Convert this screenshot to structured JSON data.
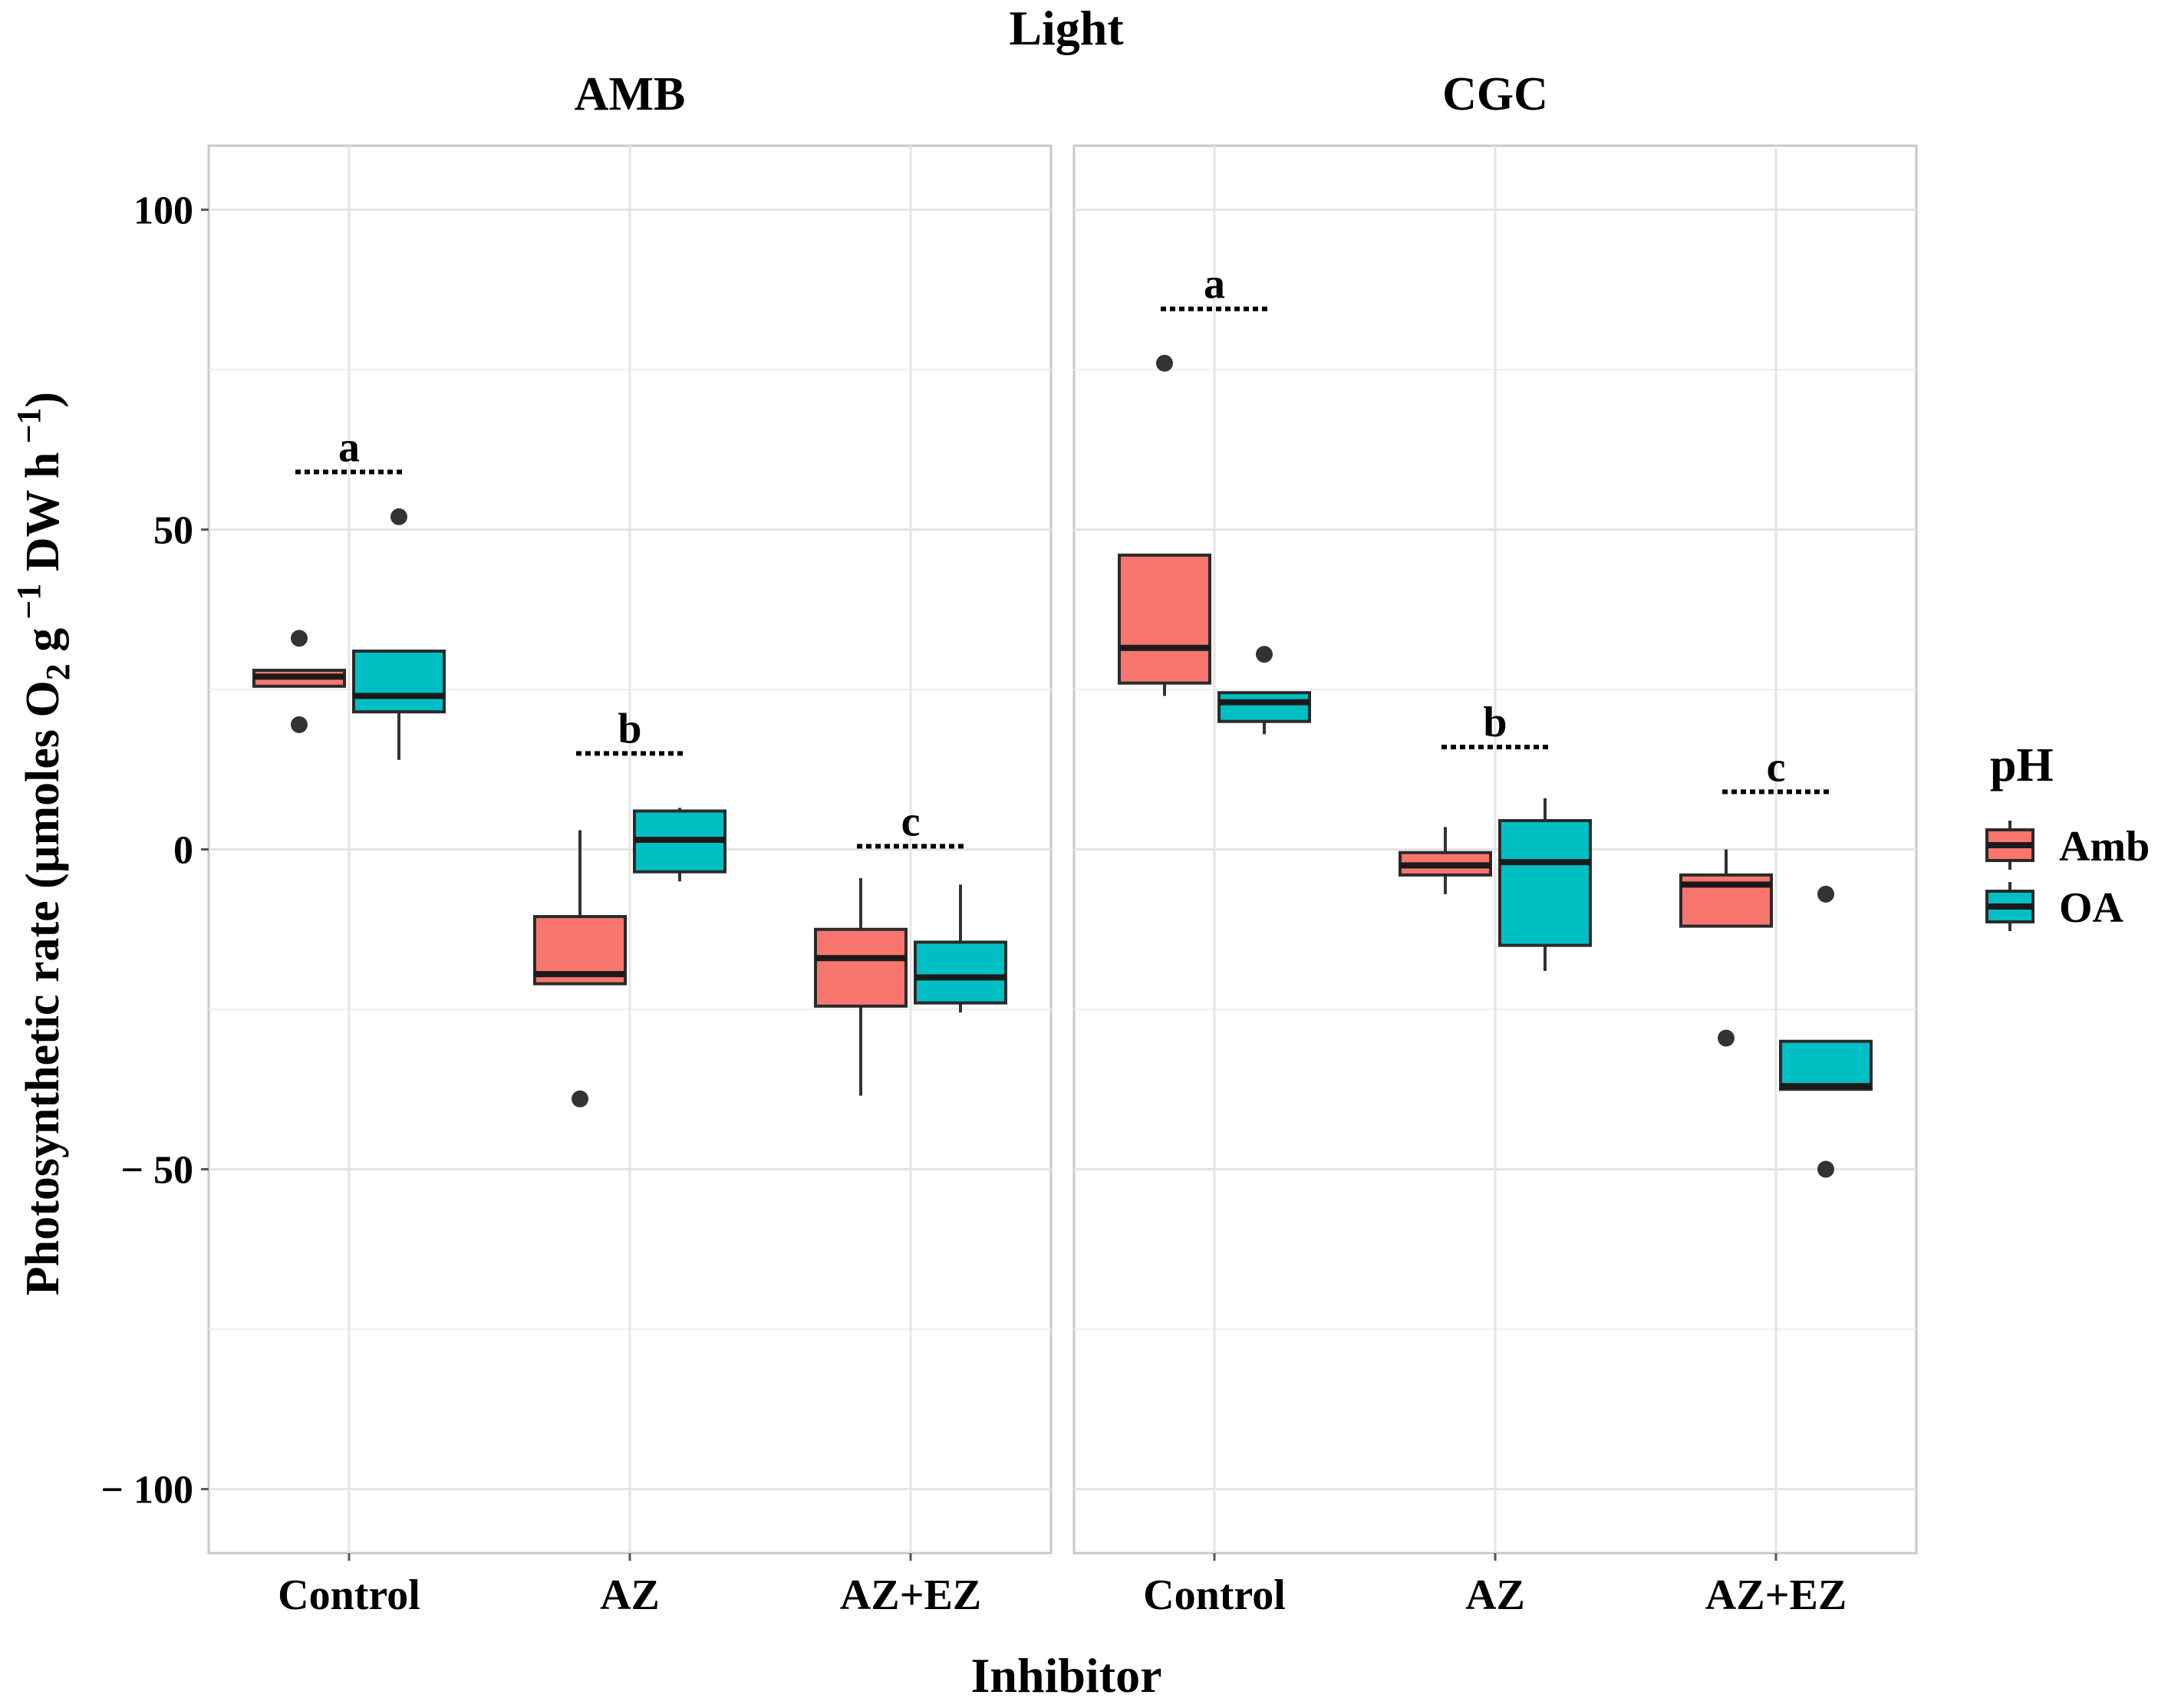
{
  "colors": {
    "Amb": "#F8766D",
    "OA": "#00BFC4",
    "outlier": "#333333"
  },
  "chart_data": {
    "type": "box",
    "title": "Light",
    "xlabel": "Inhibitor",
    "ylabel": "Photosynthetic rate (µmoles O",
    "ylabel_sub": "2",
    "ylabel_mid": " g",
    "ylabel_sup1": " −1",
    "ylabel_end": " DW h",
    "ylabel_sup2": " −1",
    "ylabel_close": ")",
    "ylim": [
      -110,
      110
    ],
    "yticks": [
      100,
      50,
      0,
      -50,
      -100
    ],
    "ytick_labels": [
      "100",
      "50",
      "0",
      "− 50",
      "− 100"
    ],
    "categories": [
      "Control",
      "AZ",
      "AZ+EZ"
    ],
    "legend": {
      "title": "pH",
      "entries": [
        "Amb",
        "OA"
      ],
      "position": "right"
    },
    "panels": [
      {
        "name": "AMB",
        "groups": [
          {
            "category": "Control",
            "letter": "a",
            "letter_y": 59,
            "boxes": [
              {
                "series": "Amb",
                "min": 25.5,
                "q1": 25.5,
                "median": 27,
                "q3": 28,
                "max": 28,
                "outliers": [
                  33,
                  19.5
                ]
              },
              {
                "series": "OA",
                "min": 14,
                "q1": 21.5,
                "median": 24,
                "q3": 31,
                "max": 31,
                "outliers": [
                  52
                ]
              }
            ]
          },
          {
            "category": "AZ",
            "letter": "b",
            "letter_y": 15,
            "boxes": [
              {
                "series": "Amb",
                "min": -21,
                "q1": -21,
                "median": -19.5,
                "q3": -10.5,
                "max": 3,
                "outliers": [
                  -39
                ]
              },
              {
                "series": "OA",
                "min": -5,
                "q1": -3.5,
                "median": 1.5,
                "q3": 6,
                "max": 6.5,
                "outliers": []
              }
            ]
          },
          {
            "category": "AZ+EZ",
            "letter": "c",
            "letter_y": 0.5,
            "boxes": [
              {
                "series": "Amb",
                "min": -38.5,
                "q1": -24.5,
                "median": -17,
                "q3": -12.5,
                "max": -4.5,
                "outliers": []
              },
              {
                "series": "OA",
                "min": -25.5,
                "q1": -24,
                "median": -20,
                "q3": -14.5,
                "max": -5.5,
                "outliers": []
              }
            ]
          }
        ]
      },
      {
        "name": "CGC",
        "groups": [
          {
            "category": "Control",
            "letter": "a",
            "letter_y": 84.5,
            "boxes": [
              {
                "series": "Amb",
                "min": 24,
                "q1": 26,
                "median": 31.5,
                "q3": 46,
                "max": 46,
                "outliers": [
                  76
                ]
              },
              {
                "series": "OA",
                "min": 18,
                "q1": 20,
                "median": 23,
                "q3": 24.5,
                "max": 24.5,
                "outliers": [
                  30.5
                ]
              }
            ]
          },
          {
            "category": "AZ",
            "letter": "b",
            "letter_y": 16,
            "boxes": [
              {
                "series": "Amb",
                "min": -7,
                "q1": -4,
                "median": -2.5,
                "q3": -0.5,
                "max": 3.5,
                "outliers": []
              },
              {
                "series": "OA",
                "min": -19,
                "q1": -15,
                "median": -2,
                "q3": 4.5,
                "max": 8,
                "outliers": []
              }
            ]
          },
          {
            "category": "AZ+EZ",
            "letter": "c",
            "letter_y": 9,
            "boxes": [
              {
                "series": "Amb",
                "min": -12,
                "q1": -12,
                "median": -5.5,
                "q3": -4,
                "max": 0,
                "outliers": [
                  -29.5
                ]
              },
              {
                "series": "OA",
                "min": -37.5,
                "q1": -37.5,
                "median": -37,
                "q3": -30,
                "max": -30,
                "outliers": [
                  -7,
                  -50
                ]
              }
            ]
          }
        ]
      }
    ]
  }
}
